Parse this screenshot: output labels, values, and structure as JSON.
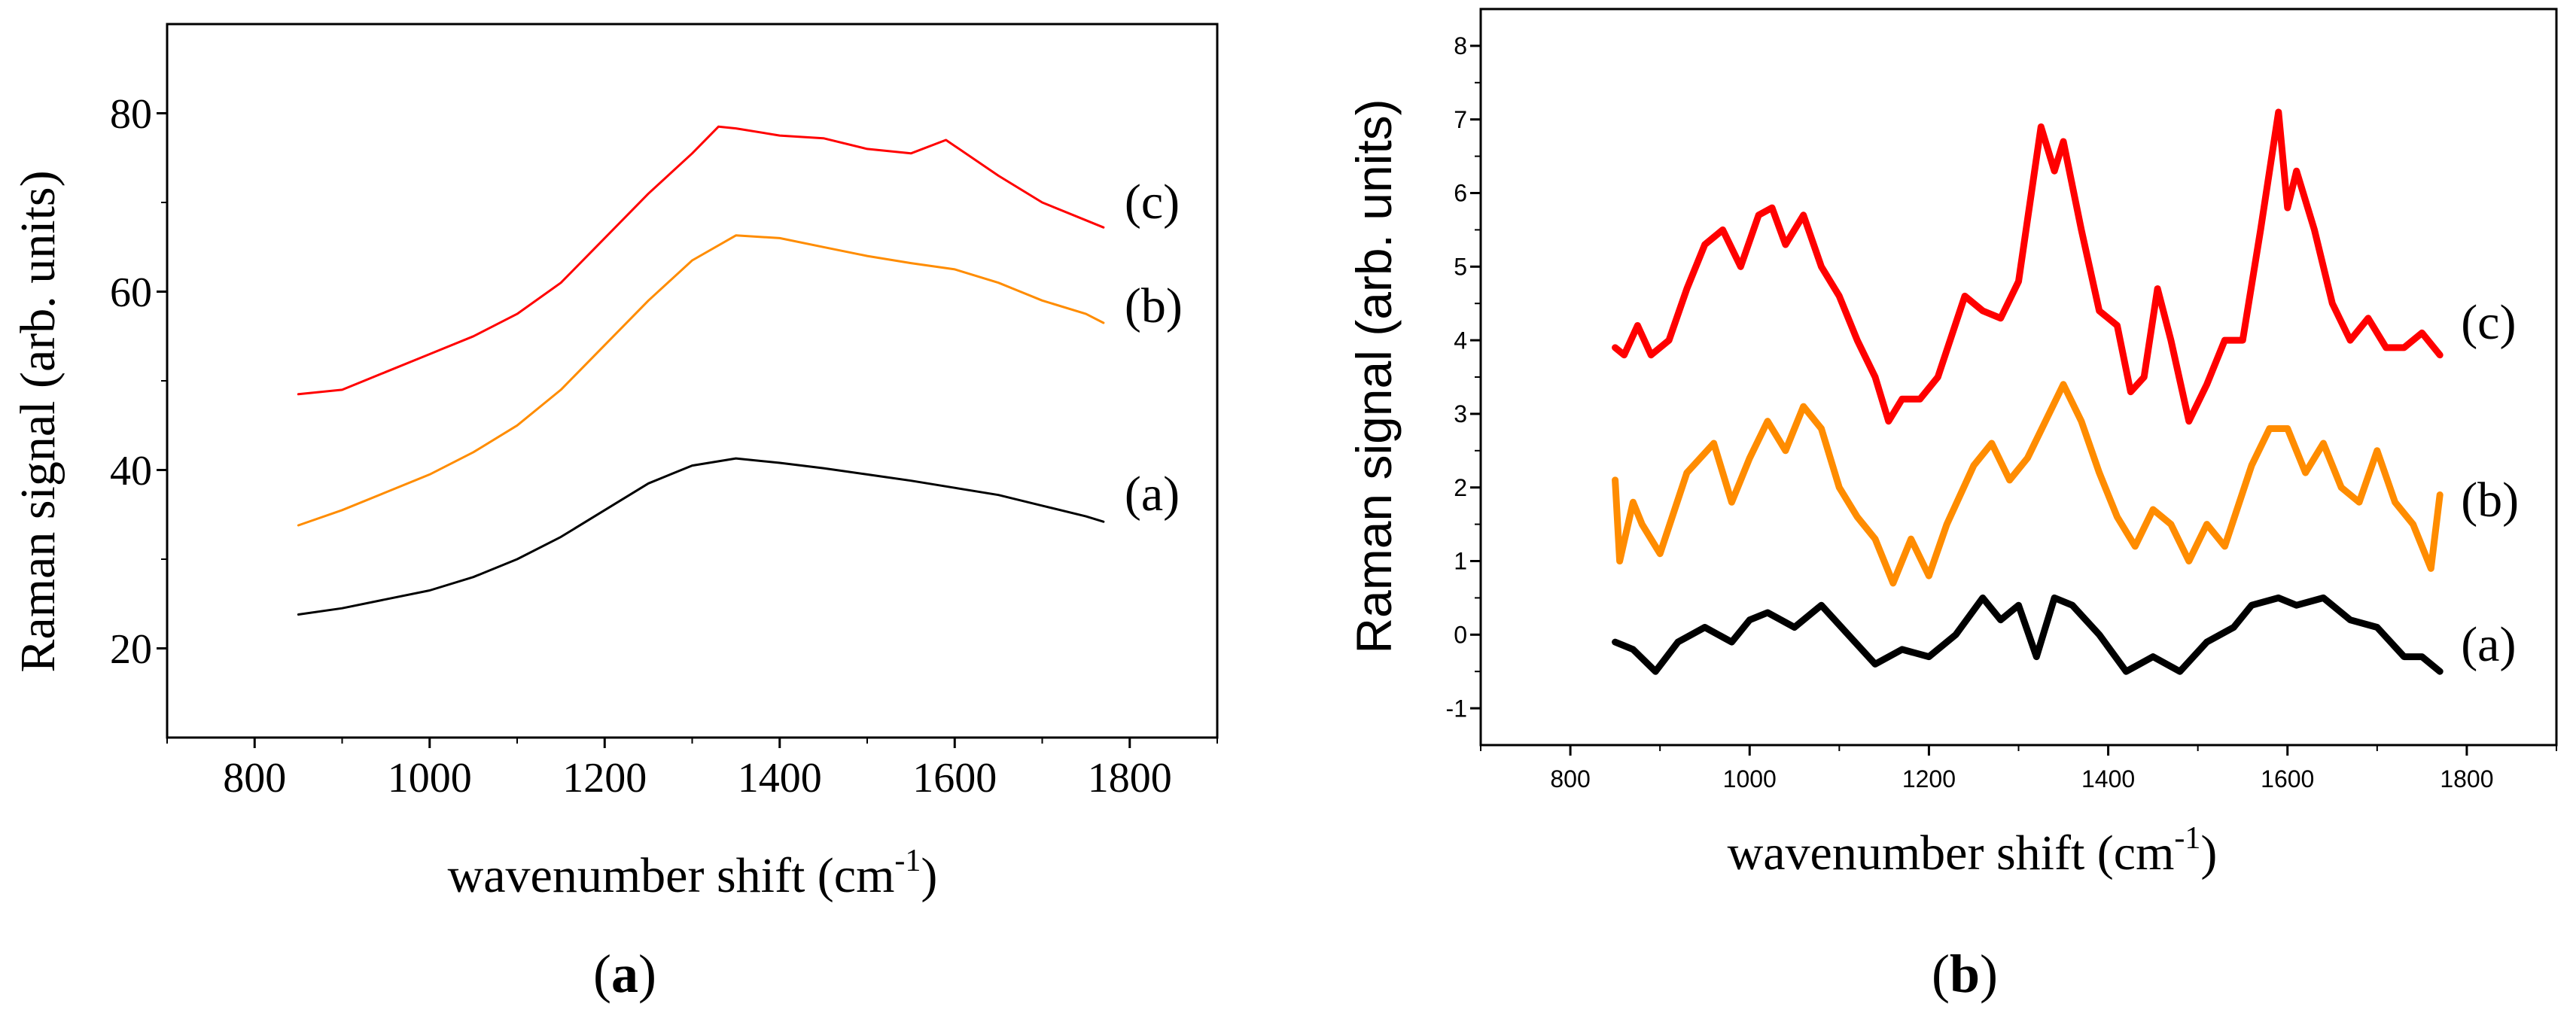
{
  "chart_data": [
    {
      "type": "line",
      "panel": "a",
      "caption": {
        "open": "(",
        "letter": "a",
        "close": ")"
      },
      "title": "",
      "xlabel": "wavenumber shift (cm",
      "xlabel_sup": "-1",
      "xlabel_close": ")",
      "ylabel": "Raman signal (arb. units)",
      "xlim": [
        700,
        1900
      ],
      "ylim": [
        10,
        90
      ],
      "xticks": [
        800,
        1000,
        1200,
        1400,
        1600,
        1800
      ],
      "xtick_labels": [
        "800",
        "1000",
        "1200",
        "1400",
        "1600",
        "1800"
      ],
      "yticks": [
        20,
        40,
        60,
        80
      ],
      "ytick_labels": [
        "20",
        "40",
        "60",
        "80"
      ],
      "series": [
        {
          "name": "(a)",
          "color": "#000000",
          "x": [
            850,
            900,
            950,
            1000,
            1050,
            1100,
            1150,
            1200,
            1250,
            1300,
            1350,
            1400,
            1450,
            1500,
            1550,
            1600,
            1650,
            1700,
            1750,
            1770
          ],
          "y": [
            23.8,
            24.5,
            25.5,
            26.5,
            28.0,
            30.0,
            32.5,
            35.5,
            38.5,
            40.5,
            41.3,
            40.8,
            40.2,
            39.5,
            38.8,
            38.0,
            37.2,
            36.0,
            34.8,
            34.2
          ]
        },
        {
          "name": "(b)",
          "color": "#ff8c00",
          "x": [
            850,
            900,
            950,
            1000,
            1050,
            1100,
            1150,
            1200,
            1250,
            1300,
            1350,
            1400,
            1450,
            1500,
            1550,
            1600,
            1650,
            1700,
            1750,
            1770
          ],
          "y": [
            33.8,
            35.5,
            37.5,
            39.5,
            42.0,
            45.0,
            49.0,
            54.0,
            59.0,
            63.5,
            66.3,
            66.0,
            65.0,
            64.0,
            63.2,
            62.5,
            61.0,
            59.0,
            57.5,
            56.5
          ]
        },
        {
          "name": "(c)",
          "color": "#ff0000",
          "x": [
            850,
            900,
            950,
            1000,
            1050,
            1100,
            1150,
            1200,
            1250,
            1300,
            1330,
            1350,
            1400,
            1450,
            1500,
            1550,
            1590,
            1650,
            1700,
            1750,
            1770
          ],
          "y": [
            48.5,
            49.0,
            51.0,
            53.0,
            55.0,
            57.5,
            61.0,
            66.0,
            71.0,
            75.5,
            78.5,
            78.3,
            77.5,
            77.2,
            76.0,
            75.5,
            77.0,
            73.0,
            70.0,
            68.0,
            67.2
          ]
        }
      ]
    },
    {
      "type": "line",
      "panel": "b",
      "caption": {
        "open": "(",
        "letter": "b",
        "close": ")"
      },
      "title": "",
      "xlabel": "wavenumber shift (cm",
      "xlabel_sup": "-1",
      "xlabel_close": ")",
      "ylabel": "Raman signal (arb. units)",
      "xlim": [
        700,
        1900
      ],
      "ylim": [
        -1.5,
        8.5
      ],
      "xticks": [
        800,
        1000,
        1200,
        1400,
        1600,
        1800
      ],
      "xtick_labels": [
        "800",
        "1000",
        "1200",
        "1400",
        "1600",
        "1800"
      ],
      "yticks": [
        -1,
        0,
        1,
        2,
        3,
        4,
        5,
        6,
        7,
        8
      ],
      "ytick_labels": [
        "-1",
        "0",
        "1",
        "2",
        "3",
        "4",
        "5",
        "6",
        "7",
        "8"
      ],
      "series": [
        {
          "name": "(a)",
          "color": "#000000",
          "x": [
            850,
            870,
            895,
            920,
            950,
            980,
            1000,
            1020,
            1050,
            1080,
            1110,
            1140,
            1170,
            1200,
            1230,
            1260,
            1280,
            1300,
            1320,
            1340,
            1360,
            1390,
            1420,
            1450,
            1480,
            1510,
            1540,
            1560,
            1590,
            1610,
            1640,
            1670,
            1700,
            1730,
            1750,
            1770
          ],
          "y": [
            -0.1,
            -0.2,
            -0.5,
            -0.1,
            0.1,
            -0.1,
            0.2,
            0.3,
            0.1,
            0.4,
            0.0,
            -0.4,
            -0.2,
            -0.3,
            0.0,
            0.5,
            0.2,
            0.4,
            -0.3,
            0.5,
            0.4,
            0.0,
            -0.5,
            -0.3,
            -0.5,
            -0.1,
            0.1,
            0.4,
            0.5,
            0.4,
            0.5,
            0.2,
            0.1,
            -0.3,
            -0.3,
            -0.5
          ]
        },
        {
          "name": "(b)",
          "color": "#ff8c00",
          "x": [
            850,
            855,
            870,
            880,
            900,
            930,
            960,
            980,
            1000,
            1020,
            1040,
            1060,
            1080,
            1100,
            1120,
            1140,
            1160,
            1180,
            1200,
            1220,
            1250,
            1270,
            1290,
            1310,
            1330,
            1350,
            1370,
            1390,
            1410,
            1430,
            1450,
            1470,
            1490,
            1510,
            1530,
            1560,
            1580,
            1600,
            1620,
            1640,
            1660,
            1680,
            1700,
            1720,
            1740,
            1760,
            1770
          ],
          "y": [
            2.1,
            1.0,
            1.8,
            1.5,
            1.1,
            2.2,
            2.6,
            1.8,
            2.4,
            2.9,
            2.5,
            3.1,
            2.8,
            2.0,
            1.6,
            1.3,
            0.7,
            1.3,
            0.8,
            1.5,
            2.3,
            2.6,
            2.1,
            2.4,
            2.9,
            3.4,
            2.9,
            2.2,
            1.6,
            1.2,
            1.7,
            1.5,
            1.0,
            1.5,
            1.2,
            2.3,
            2.8,
            2.8,
            2.2,
            2.6,
            2.0,
            1.8,
            2.5,
            1.8,
            1.5,
            0.9,
            1.9
          ]
        },
        {
          "name": "(c)",
          "color": "#ff0000",
          "x": [
            850,
            860,
            875,
            890,
            910,
            930,
            950,
            970,
            990,
            1010,
            1025,
            1040,
            1060,
            1080,
            1100,
            1120,
            1140,
            1155,
            1170,
            1190,
            1210,
            1240,
            1260,
            1280,
            1300,
            1325,
            1340,
            1350,
            1370,
            1390,
            1410,
            1425,
            1440,
            1455,
            1470,
            1490,
            1510,
            1530,
            1550,
            1570,
            1590,
            1600,
            1610,
            1630,
            1650,
            1670,
            1690,
            1710,
            1730,
            1750,
            1770
          ],
          "y": [
            3.9,
            3.8,
            4.2,
            3.8,
            4.0,
            4.7,
            5.3,
            5.5,
            5.0,
            5.7,
            5.8,
            5.3,
            5.7,
            5.0,
            4.6,
            4.0,
            3.5,
            2.9,
            3.2,
            3.2,
            3.5,
            4.6,
            4.4,
            4.3,
            4.8,
            6.9,
            6.3,
            6.7,
            5.5,
            4.4,
            4.2,
            3.3,
            3.5,
            4.7,
            4.0,
            2.9,
            3.4,
            4.0,
            4.0,
            5.5,
            7.1,
            5.8,
            6.3,
            5.5,
            4.5,
            4.0,
            4.3,
            3.9,
            3.9,
            4.1,
            3.8
          ]
        }
      ]
    }
  ]
}
